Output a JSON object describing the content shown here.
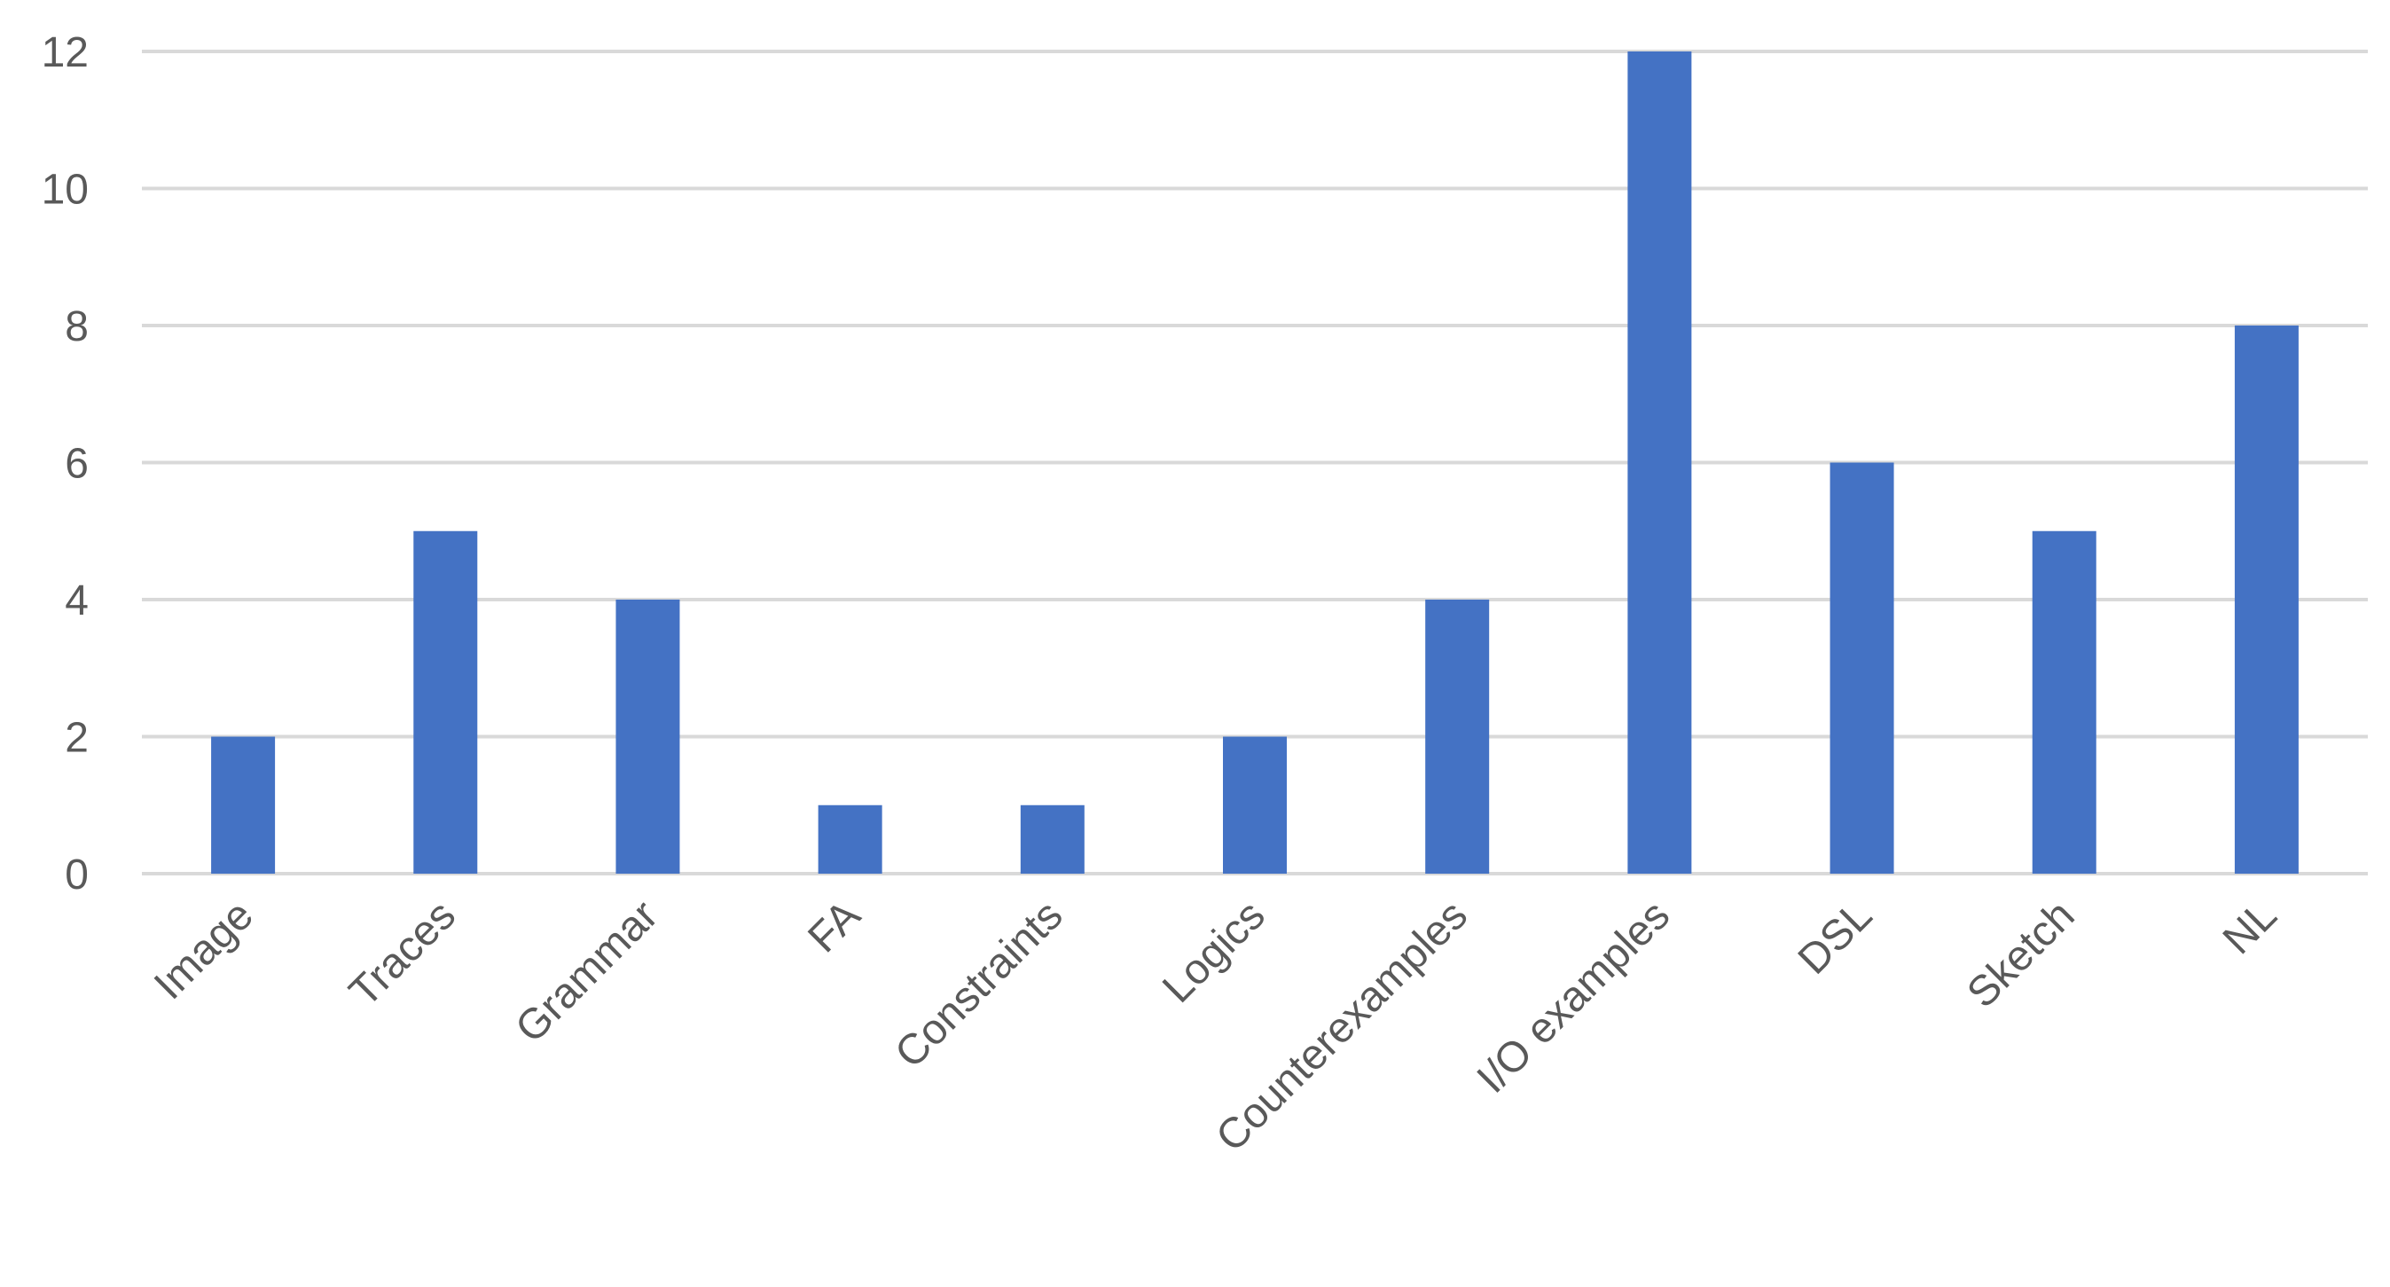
{
  "chart_data": {
    "type": "bar",
    "title": "",
    "xlabel": "",
    "ylabel": "",
    "categories": [
      "Image",
      "Traces",
      "Grammar",
      "FA",
      "Constraints",
      "Logics",
      "Counterexamples",
      "I/O examples",
      "DSL",
      "Sketch",
      "NL"
    ],
    "values": [
      2,
      5,
      4,
      1,
      1,
      2,
      4,
      12,
      6,
      5,
      8
    ],
    "ylim": [
      0,
      12
    ],
    "yticks": [
      "0",
      "2",
      "4",
      "6",
      "8",
      "10",
      "12"
    ],
    "grid": true,
    "legend": "none",
    "colors": {
      "bar": "#4472C4",
      "grid": "#D9D9D9",
      "tick_text": "#595959"
    }
  }
}
